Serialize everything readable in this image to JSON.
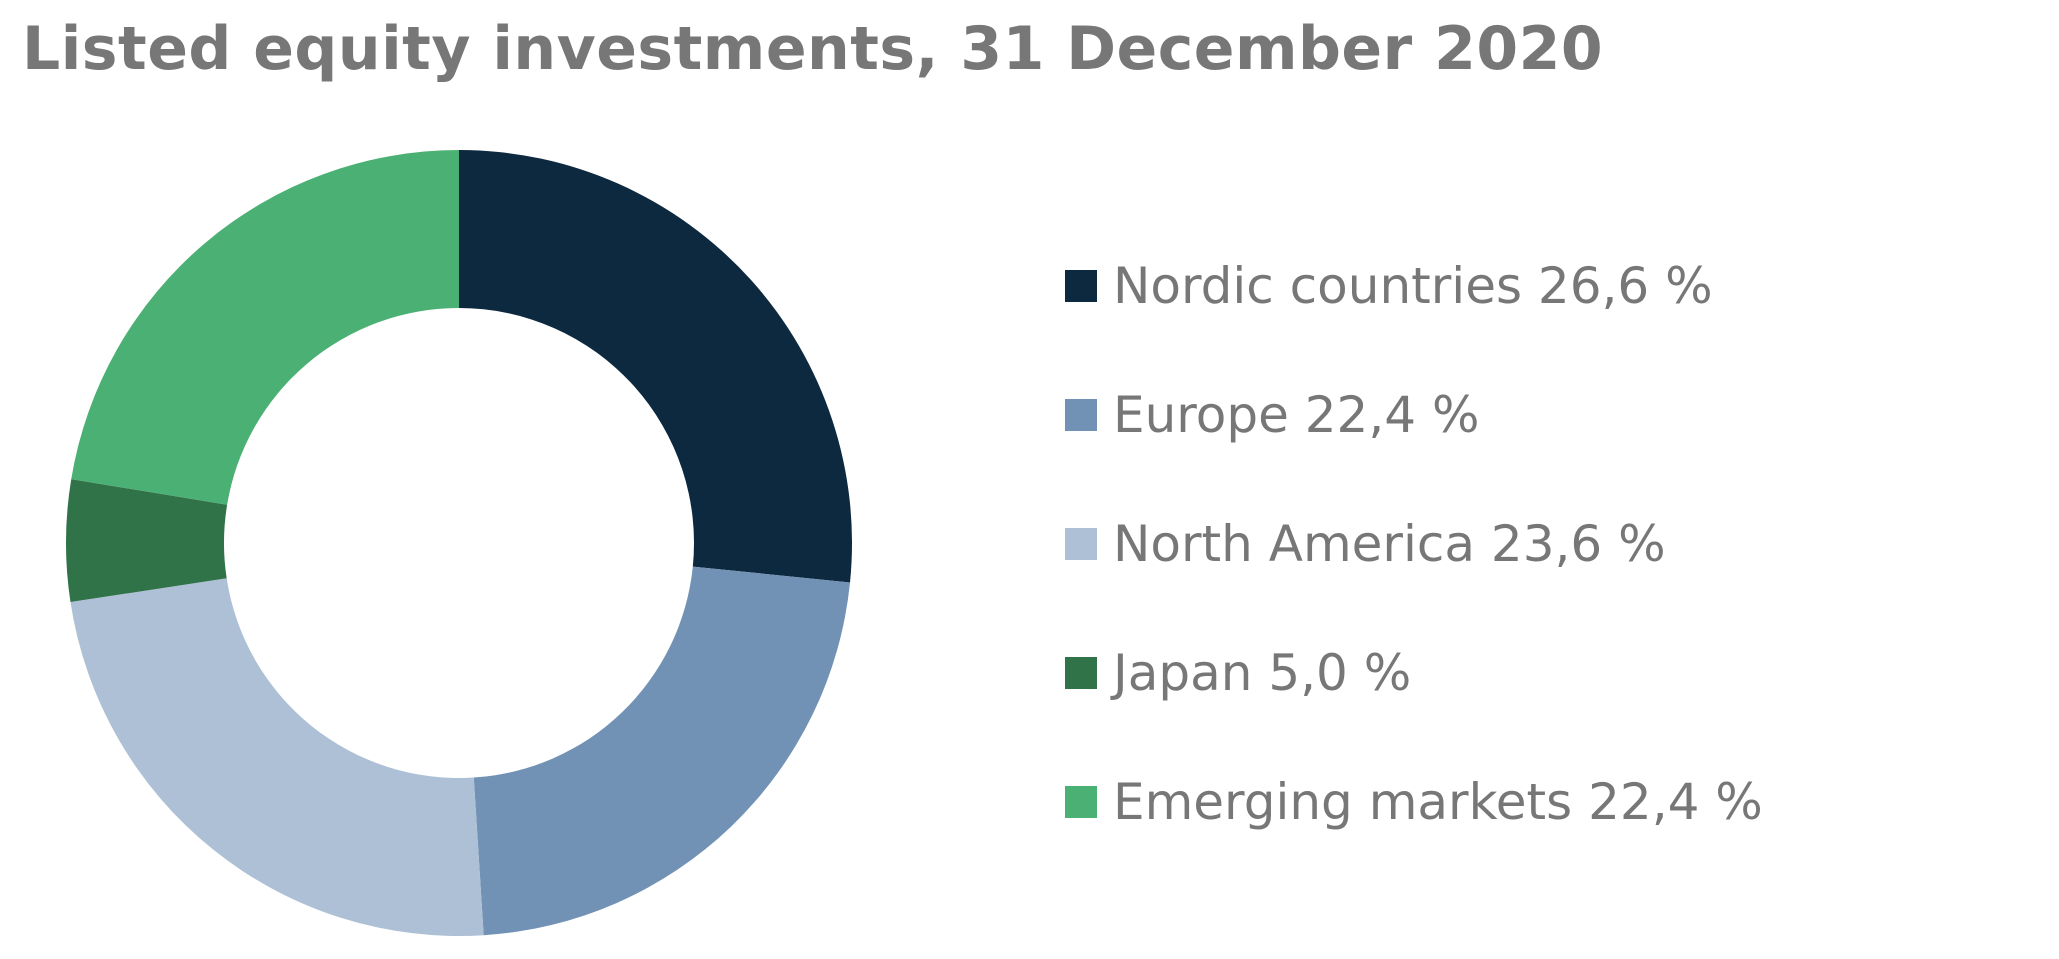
{
  "chart_data": {
    "type": "pie",
    "variant": "donut",
    "title": "Listed equity investments, 31 December 2020",
    "legend_position": "right",
    "grid": false,
    "series": [
      {
        "name": "Nordic countries",
        "value": 26.6,
        "label": "Nordic countries 26,6 %",
        "color": "#0d2940"
      },
      {
        "name": "Europe",
        "value": 22.4,
        "label": "Europe 22,4 %",
        "color": "#7292b5"
      },
      {
        "name": "North America",
        "value": 23.6,
        "label": "North America 23,6 %",
        "color": "#aec0d5"
      },
      {
        "name": "Japan",
        "value": 5.0,
        "label": "Japan 5,0 %",
        "color": "#317349"
      },
      {
        "name": "Emerging markets",
        "value": 22.4,
        "label": "Emerging markets 22,4 %",
        "color": "#4bb073"
      }
    ]
  }
}
